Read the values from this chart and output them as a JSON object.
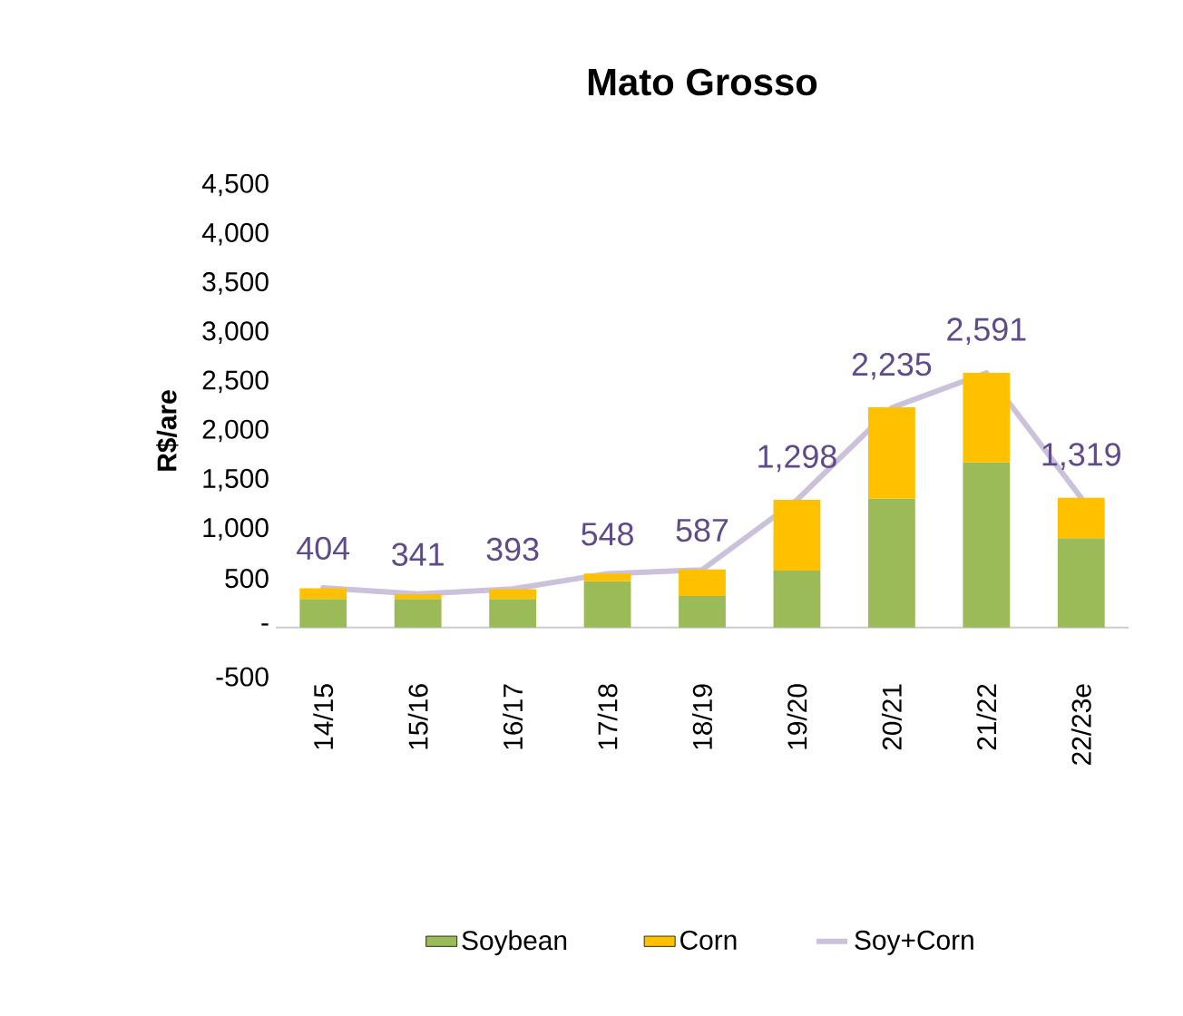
{
  "chart_data": {
    "type": "bar",
    "title": "Mato Grosso",
    "ylabel": "R$/are",
    "stacked": true,
    "categories": [
      "14/15",
      "15/16",
      "16/17",
      "17/18",
      "18/19",
      "19/20",
      "20/21",
      "21/22",
      "22/23e"
    ],
    "series": [
      {
        "name": "Soybean",
        "color": "#9bbb59",
        "values": [
          290,
          290,
          290,
          470,
          320,
          580,
          1310,
          1680,
          910
        ]
      },
      {
        "name": "Corn",
        "color": "#ffc000",
        "values": [
          110,
          50,
          100,
          80,
          270,
          720,
          930,
          910,
          410
        ]
      },
      {
        "name": "Soy+Corn",
        "type": "line",
        "color": "#ccc1da",
        "marker": "none",
        "values": [
          404,
          341,
          393,
          548,
          587,
          1298,
          2235,
          2591,
          1319
        ],
        "value_labels": [
          "404",
          "341",
          "393",
          "548",
          "587",
          "1,298",
          "2,235",
          "2,591",
          "1,319"
        ]
      }
    ],
    "ylim": [
      -500,
      4500
    ],
    "yticks": [
      {
        "value": -500,
        "label": "-500"
      },
      {
        "value": 0,
        "label": "-"
      },
      {
        "value": 500,
        "label": "500"
      },
      {
        "value": 1000,
        "label": "1,000"
      },
      {
        "value": 1500,
        "label": "1,500"
      },
      {
        "value": 2000,
        "label": "2,000"
      },
      {
        "value": 2500,
        "label": "2,500"
      },
      {
        "value": 3000,
        "label": "3,000"
      },
      {
        "value": 3500,
        "label": "3,500"
      },
      {
        "value": 4000,
        "label": "4,000"
      },
      {
        "value": 4500,
        "label": "4,500"
      }
    ],
    "grid": false,
    "legend": "bottom"
  }
}
